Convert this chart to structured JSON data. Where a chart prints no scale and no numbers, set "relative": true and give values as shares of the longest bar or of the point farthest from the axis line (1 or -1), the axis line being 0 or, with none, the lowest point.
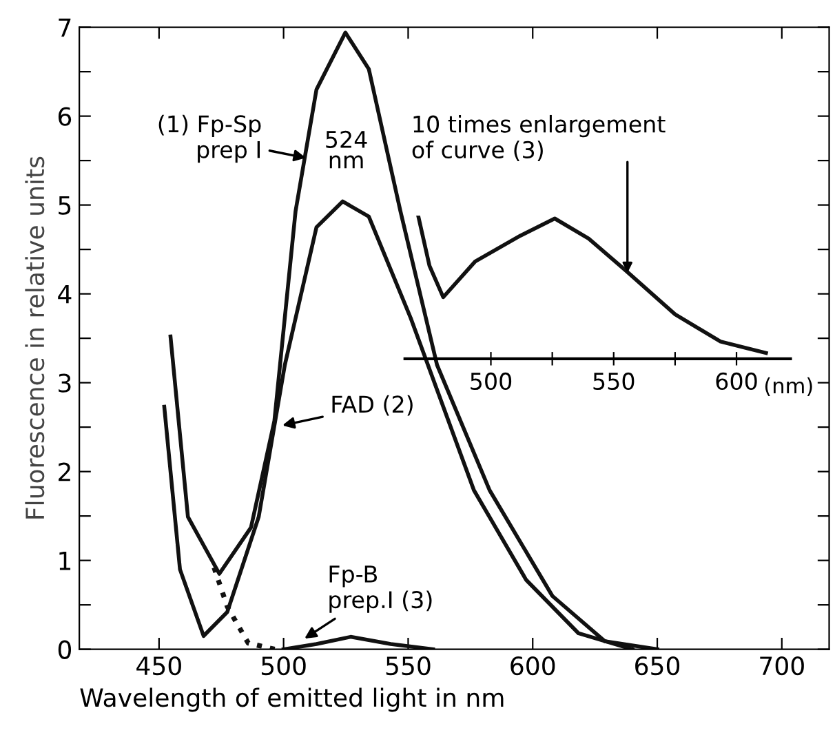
{
  "chart_data": [
    {
      "type": "line",
      "xlabel": "Wavelength of emitted light in nm",
      "ylabel": "Fluorescence in relative units",
      "xlim": [
        418,
        719
      ],
      "ylim": [
        0,
        7
      ],
      "xticks": [
        450,
        500,
        550,
        600,
        650,
        700
      ],
      "yticks": [
        0,
        {
          "value": 0.5,
          "label": null
        },
        1,
        {
          "value": 1.5,
          "label": null
        },
        2,
        {
          "value": 2.5,
          "label": null
        },
        3,
        {
          "value": 3.5,
          "label": null
        },
        4,
        {
          "value": 4.5,
          "label": null
        },
        5,
        {
          "value": 5.5,
          "label": null
        },
        6,
        {
          "value": 6.5,
          "label": null
        },
        7
      ],
      "series": [
        {
          "color": "#111111",
          "line_style": "solid",
          "x": [
            454.6,
            461.6,
            474.2,
            486.9,
            496.3,
            504.8,
            513.2,
            524.8,
            534.2,
            546.9,
            561.6,
            582.7,
            607.9,
            629,
            650
          ],
          "values": [
            3.52,
            1.49,
            0.85,
            1.37,
            2.57,
            4.93,
            6.3,
            6.94,
            6.53,
            4.93,
            3.2,
            1.79,
            0.6,
            0.09,
            0.0
          ]
        },
        {
          "color": "#111111",
          "line_style": "solid",
          "x": [
            452.1,
            458.4,
            467.9,
            477.4,
            490,
            500.5,
            513.2,
            523.7,
            534.2,
            551,
            576.4,
            597.4,
            618.4,
            640
          ],
          "values": [
            2.73,
            0.9,
            0.15,
            0.42,
            1.49,
            3.2,
            4.75,
            5.04,
            4.87,
            3.73,
            1.79,
            0.78,
            0.18,
            0.0
          ]
        },
        {
          "color": "#111111",
          "line_style": "dotted",
          "x": [
            472.1,
            477.4,
            485.8,
            496.5
          ],
          "values": [
            0.92,
            0.48,
            0.07,
            0.0
          ]
        },
        {
          "color": "#111111",
          "line_style": "solid",
          "x": [
            500,
            513.2,
            526.9,
            543,
            560
          ],
          "values": [
            0.0,
            0.06,
            0.14,
            0.06,
            0.0
          ]
        }
      ],
      "annotations": [
        {
          "text": "(1) Fp-Sp\nprep I",
          "x": 509,
          "y": 5.53
        },
        "524\nnm",
        {
          "text": "FAD (2)",
          "x": 499.5,
          "y": 2.52
        },
        {
          "text": "Fp-B\nprep.I (3)",
          "x": 508.4,
          "y": 0.12
        }
      ]
    },
    {
      "type": "line",
      "relative": true,
      "xlabel": "(nm)",
      "tick_labels": "x",
      "xlim": [
        465,
        622
      ],
      "xticks": [
        500,
        {
          "value": 525,
          "label": null
        },
        550,
        {
          "value": 575,
          "label": null
        },
        600
      ],
      "series": [
        {
          "color": "#111111",
          "line_style": "solid",
          "x": [
            470.4,
            475,
            480.6,
            493.6,
            512,
            526,
            539.8,
            554.7,
            575,
            593.5,
            612
          ],
          "values": [
            1,
            0.65,
            0.43,
            0.68,
            0.86,
            0.98,
            0.84,
            0.62,
            0.31,
            0.12,
            0.04
          ]
        }
      ],
      "annotations": [
        {
          "text": "10 times enlargement\nof curve (3)",
          "x": 555.6,
          "y": 0.6
        }
      ]
    }
  ]
}
